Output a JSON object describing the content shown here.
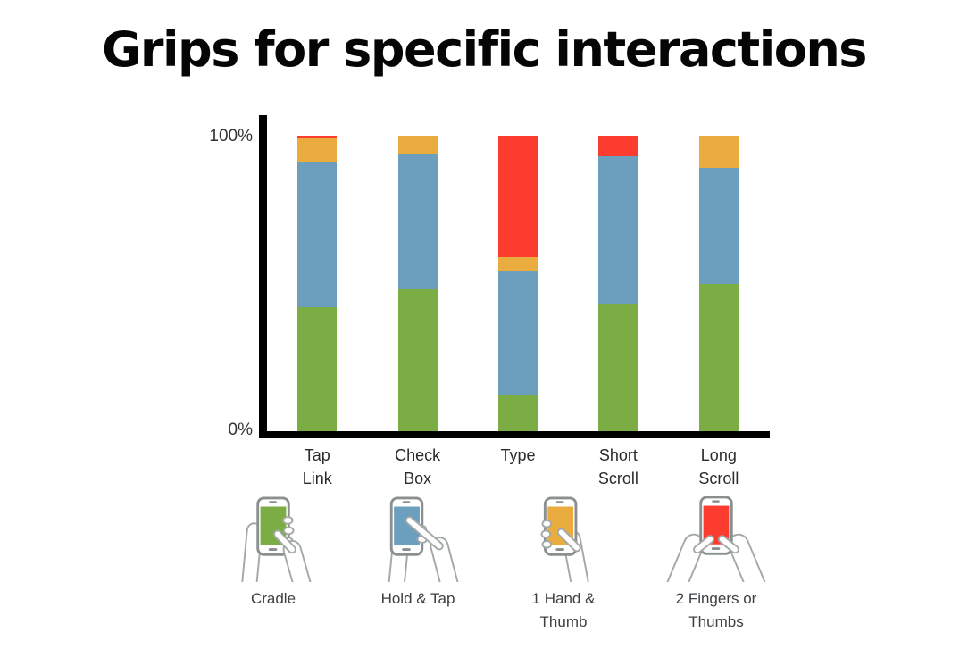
{
  "title": "Grips for specific interactions",
  "colors": {
    "cradle_green": "#7CAC44",
    "hold_tap_blue": "#6C9EBD",
    "hand_thumb_orange": "#EBAC3F",
    "two_fingers_red": "#FB3C2F",
    "axis_black": "#000000"
  },
  "axis": {
    "top_label": "100%",
    "bottom_label": "0%"
  },
  "chart_data": {
    "type": "bar",
    "stacked": true,
    "title": "Grips for specific interactions",
    "xlabel": "",
    "ylabel": "",
    "units": "percent",
    "ylim": [
      0,
      100
    ],
    "y_axis_ticks": [
      "100%",
      "0%"
    ],
    "grid": false,
    "legend_position": "bottom",
    "categories": [
      "Tap\nLink",
      "Check\nBox",
      "Type",
      "Short\nScroll",
      "Long\nScroll"
    ],
    "series": [
      {
        "name": "Cradle",
        "color_key": "cradle_green",
        "values": [
          42,
          48,
          12,
          43,
          50
        ]
      },
      {
        "name": "Hold & Tap",
        "color_key": "hold_tap_blue",
        "values": [
          49,
          46,
          42,
          50,
          39
        ]
      },
      {
        "name": "1 Hand & Thumb",
        "color_key": "hand_thumb_orange",
        "values": [
          8,
          6,
          5,
          0,
          11
        ]
      },
      {
        "name": "2 Fingers or Thumbs",
        "color_key": "two_fingers_red",
        "values": [
          1,
          0,
          41,
          7,
          0
        ]
      }
    ]
  },
  "legend": [
    {
      "label": "Cradle",
      "icon": "cradle-grip-icon",
      "color": "#7CAC44"
    },
    {
      "label": "Hold & Tap",
      "icon": "hold-tap-grip-icon",
      "color": "#6C9EBD"
    },
    {
      "label": "1 Hand &\nThumb",
      "icon": "one-hand-thumb-grip-icon",
      "color": "#EBAC3F"
    },
    {
      "label": "2 Fingers or\nThumbs",
      "icon": "two-fingers-thumbs-grip-icon",
      "color": "#FB3C2F"
    }
  ]
}
